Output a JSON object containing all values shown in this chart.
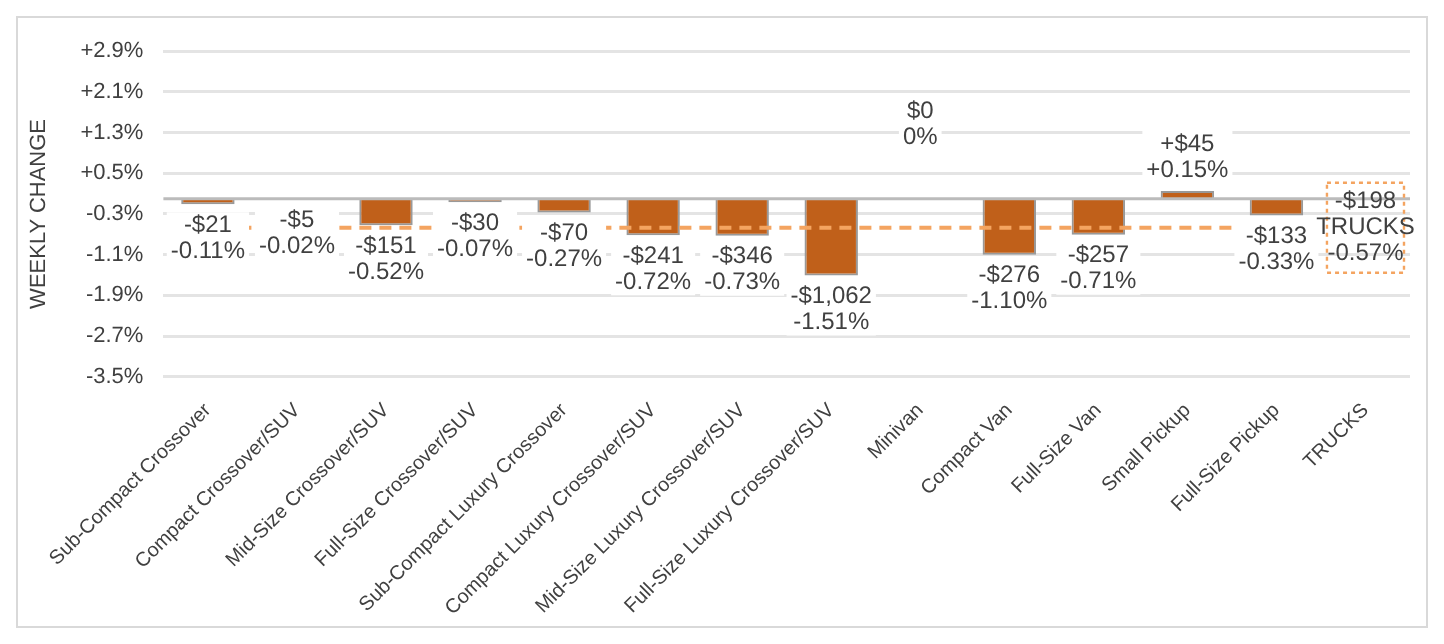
{
  "chart_data": {
    "type": "bar",
    "ylabel": "WEEKLY CHANGE",
    "categories": [
      "Sub-Compact Crossover",
      "Compact Crossover/SUV",
      "Mid-Size Crossover/SUV",
      "Full-Size Crossover/SUV",
      "Sub-Compact Luxury Crossover",
      "Compact Luxury Crossover/SUV",
      "Mid-Size Luxury Crossover/SUV",
      "Full-Size Luxury Crossover/SUV",
      "Minivan",
      "Compact Van",
      "Full-Size Van",
      "Small Pickup",
      "Full-Size Pickup",
      "TRUCKS"
    ],
    "values": [
      -0.11,
      -0.02,
      -0.52,
      -0.07,
      -0.27,
      -0.72,
      -0.73,
      -1.51,
      0,
      -1.1,
      -0.71,
      0.15,
      -0.33,
      null
    ],
    "value_labels": [
      "-$21\n-0.11%",
      "-$5\n-0.02%",
      "-$151\n-0.52%",
      "-$30\n-0.07%",
      "-$70\n-0.27%",
      "-$241\n-0.72%",
      "-$346\n-0.73%",
      "-$1,062\n-1.51%",
      "$0\n0%",
      "-$276\n-1.10%",
      "-$257\n-0.71%",
      "+$45\n+0.15%",
      "-$133\n-0.33%",
      null
    ],
    "color": "#c0601a",
    "ylim": [
      -3.5,
      2.9
    ],
    "yticks": [
      {
        "value": 2.9,
        "label": "+2.9%"
      },
      {
        "value": 2.1,
        "label": "+2.1%"
      },
      {
        "value": 1.3,
        "label": "+1.3%"
      },
      {
        "value": 0.5,
        "label": "+0.5%"
      },
      {
        "value": -0.3,
        "label": "-0.3%"
      },
      {
        "value": -1.1,
        "label": "-1.1%"
      },
      {
        "value": -1.9,
        "label": "-1.9%"
      },
      {
        "value": -2.7,
        "label": "-2.7%"
      },
      {
        "value": -3.5,
        "label": "-3.5%"
      }
    ],
    "ref_lines": [
      {
        "axis": "y",
        "value": -0.57,
        "label": "-$198\nTRUCKS\n-0.57%",
        "color": "#f4a460",
        "line_style": "dashed"
      }
    ],
    "grid": "y",
    "legend": false
  }
}
